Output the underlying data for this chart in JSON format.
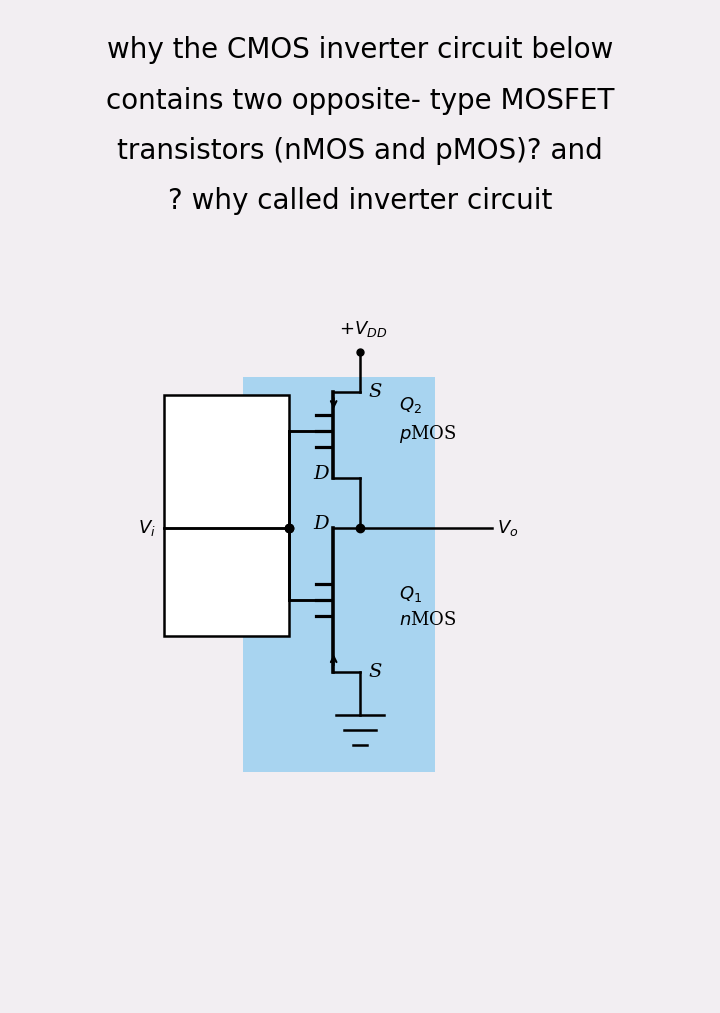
{
  "title_lines": [
    "why the CMOS inverter circuit below",
    "contains two opposite- type MOSFET",
    "transistors (nMOS and pMOS)? and",
    "? why called inverter circuit"
  ],
  "bg_color": "#f2eef2",
  "box_color": "#a8d4f0",
  "text_color": "#000000",
  "title_fontsize": 20,
  "label_fontsize": 14,
  "annot_fontsize": 13,
  "lw": 1.8
}
